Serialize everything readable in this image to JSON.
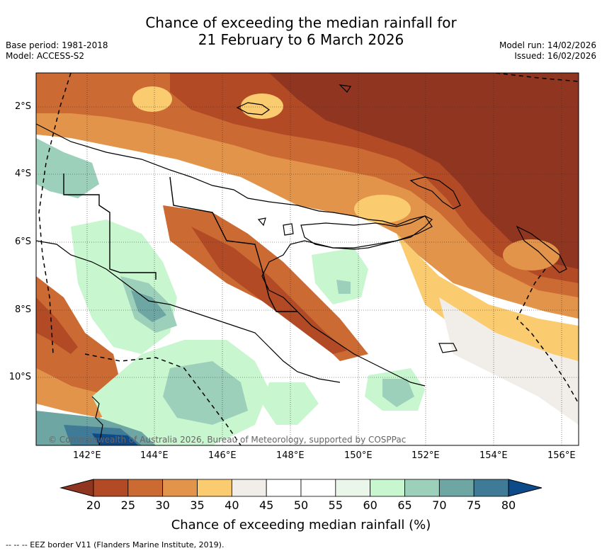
{
  "title_line1": "Chance of exceeding the median rainfall for",
  "title_line2": "21 February to 6 March 2026",
  "base_period": "Base period: 1981-2018",
  "model": "Model: ACCESS-S2",
  "model_run": "Model run: 14/02/2026",
  "issued": "Issued: 16/02/2026",
  "copyright": "© Commonwealth of Australia 2026, Bureau of Meteorology, supported by COSPPac",
  "lat_labels": [
    "2°S",
    "4°S",
    "6°S",
    "8°S",
    "10°S"
  ],
  "lon_labels": [
    "142°E",
    "144°E",
    "146°E",
    "148°E",
    "150°E",
    "152°E",
    "154°E",
    "156°E"
  ],
  "colorbar": {
    "ticks": [
      "20",
      "25",
      "30",
      "35",
      "40",
      "45",
      "50",
      "55",
      "60",
      "65",
      "70",
      "75",
      "80"
    ],
    "colors": [
      "#8f3520",
      "#b24a25",
      "#cc6a33",
      "#e2944a",
      "#fbcb70",
      "#f1ede9",
      "#ffffff",
      "#ffffff",
      "#eaf6e9",
      "#c8f7cf",
      "#9cd0ba",
      "#6ea6a3",
      "#3f7a96",
      "#0d4a8a"
    ],
    "label": "Chance of exceeding median rainfall (%)"
  },
  "footnote": "--  --  -- EEZ border V11 (Flanders Marine Institute, 2019)."
}
